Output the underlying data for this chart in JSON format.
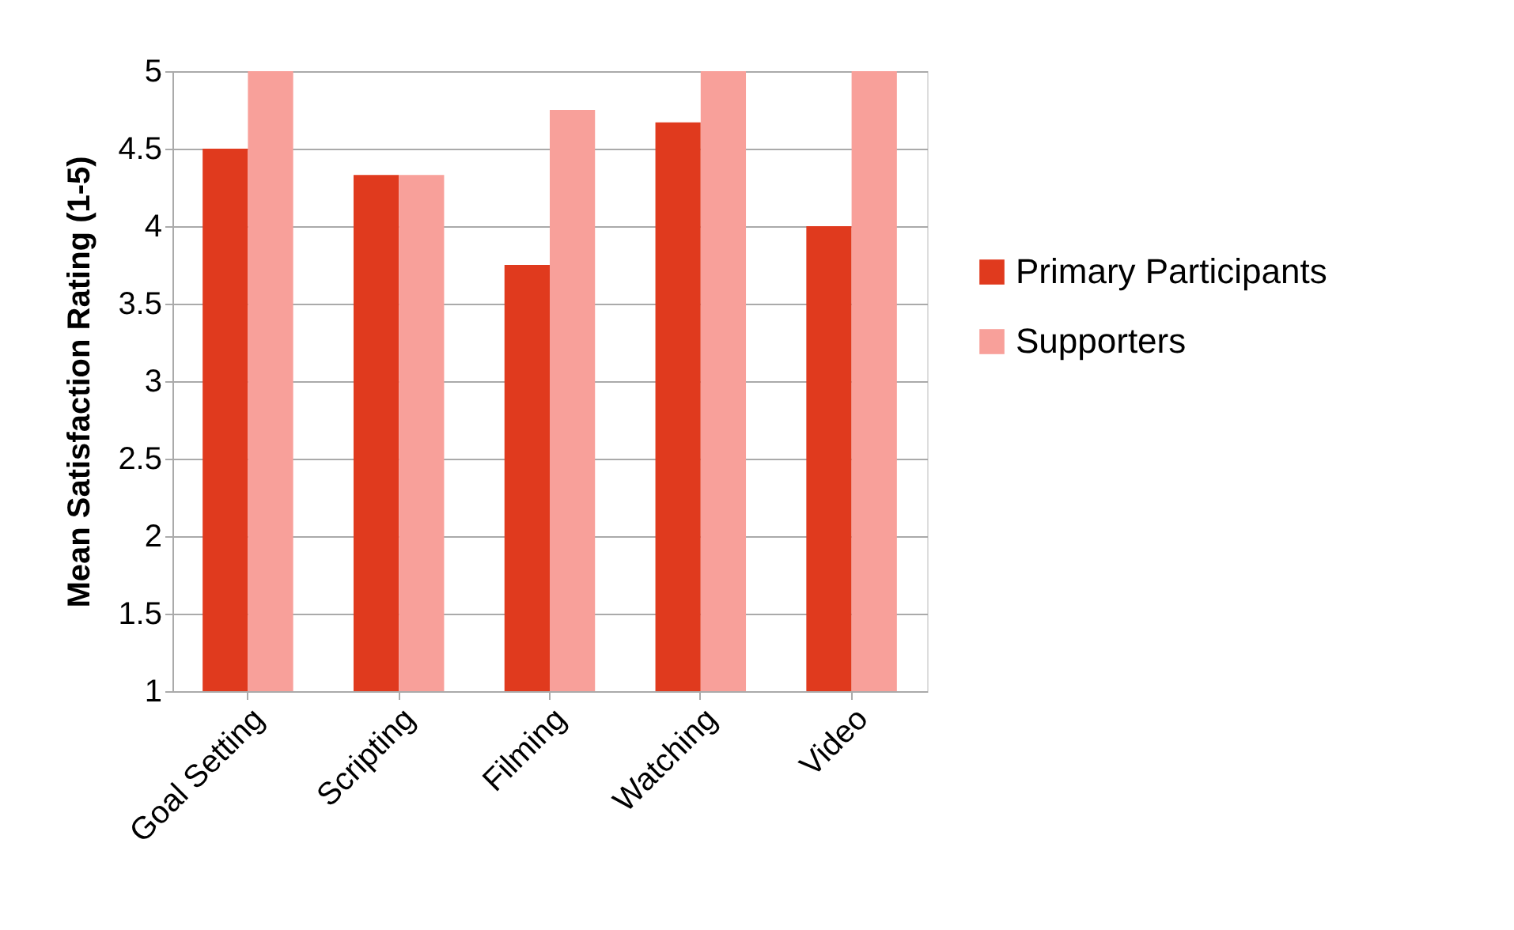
{
  "chart_data": {
    "type": "bar",
    "ylabel": "Mean Satisfaction Rating (1-5)",
    "categories": [
      "Goal Setting",
      "Scripting",
      "Filming",
      "Watching",
      "Video"
    ],
    "series": [
      {
        "name": "Primary Participants",
        "color": "#e03a1e",
        "values": [
          4.5,
          4.33,
          3.75,
          4.67,
          4.0
        ]
      },
      {
        "name": "Supporters",
        "color": "#f8a09a",
        "values": [
          5,
          4.33,
          4.75,
          5,
          5
        ]
      }
    ],
    "ylim": [
      1,
      5
    ],
    "yticks": [
      1,
      1.5,
      2,
      2.5,
      3,
      3.5,
      4,
      4.5,
      5
    ],
    "grid": "y",
    "legend": "right"
  }
}
